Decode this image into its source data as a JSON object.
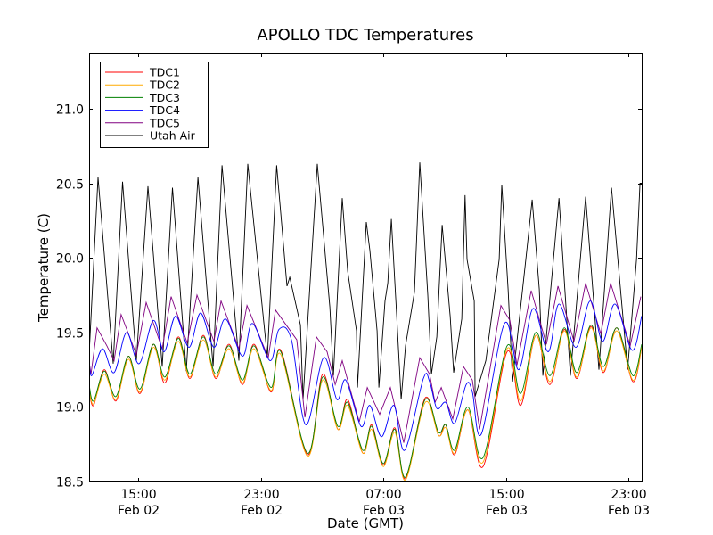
{
  "chart_data": {
    "type": "line",
    "title": "APOLLO TDC Temperatures",
    "xlabel": "Date (GMT)",
    "ylabel": "Temperature (C)",
    "x_units": "hours since 00:00 Feb 02 (GMT)",
    "xlim": [
      11.8,
      47.86
    ],
    "ylim": [
      18.5,
      21.37
    ],
    "grid": false,
    "legend_position": "top-left",
    "xticks": [
      {
        "value": 15,
        "time": "15:00",
        "date": "Feb 02"
      },
      {
        "value": 23,
        "time": "23:00",
        "date": "Feb 02"
      },
      {
        "value": 31,
        "time": "07:00",
        "date": "Feb 03"
      },
      {
        "value": 39,
        "time": "15:00",
        "date": "Feb 03"
      },
      {
        "value": 47,
        "time": "23:00",
        "date": "Feb 03"
      }
    ],
    "yticks": [
      {
        "value": 18.5,
        "label": "18.5"
      },
      {
        "value": 19.0,
        "label": "19.0"
      },
      {
        "value": 19.5,
        "label": "19.5"
      },
      {
        "value": 20.0,
        "label": "20.0"
      },
      {
        "value": 20.5,
        "label": "20.5"
      },
      {
        "value": 21.0,
        "label": "21.0"
      }
    ],
    "series": [
      {
        "name": "TDC1",
        "color": "#ff0000",
        "points": [
          [
            11.8,
            19.12
          ],
          [
            12.09,
            19.01
          ],
          [
            12.79,
            19.25
          ],
          [
            13.55,
            19.04
          ],
          [
            14.36,
            19.34
          ],
          [
            15.12,
            19.09
          ],
          [
            15.99,
            19.42
          ],
          [
            16.74,
            19.16
          ],
          [
            17.62,
            19.47
          ],
          [
            18.37,
            19.19
          ],
          [
            19.25,
            19.48
          ],
          [
            20.06,
            19.19
          ],
          [
            20.93,
            19.42
          ],
          [
            21.81,
            19.15
          ],
          [
            22.56,
            19.42
          ],
          [
            23.67,
            19.1
          ],
          [
            24.31,
            19.38
          ],
          [
            26.05,
            18.68
          ],
          [
            27.04,
            19.22
          ],
          [
            28.03,
            18.85
          ],
          [
            28.67,
            19.05
          ],
          [
            29.66,
            18.69
          ],
          [
            30.24,
            18.88
          ],
          [
            31.0,
            18.61
          ],
          [
            31.75,
            18.86
          ],
          [
            32.45,
            18.52
          ],
          [
            33.73,
            19.06
          ],
          [
            34.6,
            18.81
          ],
          [
            35.07,
            18.88
          ],
          [
            35.65,
            18.68
          ],
          [
            36.52,
            18.98
          ],
          [
            37.51,
            18.6
          ],
          [
            39.08,
            19.37
          ],
          [
            39.96,
            19.01
          ],
          [
            40.95,
            19.48
          ],
          [
            41.87,
            19.15
          ],
          [
            42.81,
            19.52
          ],
          [
            43.62,
            19.19
          ],
          [
            44.55,
            19.54
          ],
          [
            45.36,
            19.23
          ],
          [
            46.24,
            19.53
          ],
          [
            47.28,
            19.17
          ],
          [
            47.86,
            19.4
          ]
        ]
      },
      {
        "name": "TDC2",
        "color": "#ffaa00",
        "points": [
          [
            11.8,
            19.12
          ],
          [
            12.09,
            19.02
          ],
          [
            12.79,
            19.22
          ],
          [
            13.55,
            19.05
          ],
          [
            14.36,
            19.32
          ],
          [
            15.12,
            19.1
          ],
          [
            15.99,
            19.4
          ],
          [
            16.74,
            19.18
          ],
          [
            17.62,
            19.44
          ],
          [
            18.37,
            19.2
          ],
          [
            19.25,
            19.45
          ],
          [
            20.06,
            19.2
          ],
          [
            20.93,
            19.39
          ],
          [
            21.81,
            19.16
          ],
          [
            22.56,
            19.39
          ],
          [
            23.67,
            19.11
          ],
          [
            24.31,
            19.35
          ],
          [
            26.05,
            18.67
          ],
          [
            27.04,
            19.18
          ],
          [
            28.03,
            18.85
          ],
          [
            28.67,
            19.01
          ],
          [
            29.66,
            18.69
          ],
          [
            30.24,
            18.85
          ],
          [
            31.0,
            18.6
          ],
          [
            31.75,
            18.83
          ],
          [
            32.45,
            18.51
          ],
          [
            33.73,
            19.03
          ],
          [
            34.6,
            18.81
          ],
          [
            35.07,
            18.86
          ],
          [
            35.65,
            18.69
          ],
          [
            36.52,
            18.98
          ],
          [
            37.51,
            18.63
          ],
          [
            39.08,
            19.39
          ],
          [
            39.96,
            19.04
          ],
          [
            40.95,
            19.48
          ],
          [
            41.87,
            19.17
          ],
          [
            42.81,
            19.51
          ],
          [
            43.62,
            19.2
          ],
          [
            44.55,
            19.53
          ],
          [
            45.36,
            19.24
          ],
          [
            46.24,
            19.51
          ],
          [
            47.28,
            19.18
          ],
          [
            47.86,
            19.4
          ]
        ]
      },
      {
        "name": "TDC3",
        "color": "#008000",
        "points": [
          [
            11.8,
            19.15
          ],
          [
            12.09,
            19.04
          ],
          [
            12.79,
            19.24
          ],
          [
            13.55,
            19.07
          ],
          [
            14.36,
            19.34
          ],
          [
            15.12,
            19.12
          ],
          [
            15.99,
            19.42
          ],
          [
            16.74,
            19.2
          ],
          [
            17.62,
            19.46
          ],
          [
            18.37,
            19.22
          ],
          [
            19.25,
            19.47
          ],
          [
            20.06,
            19.22
          ],
          [
            20.93,
            19.41
          ],
          [
            21.81,
            19.18
          ],
          [
            22.56,
            19.41
          ],
          [
            23.67,
            19.13
          ],
          [
            24.31,
            19.37
          ],
          [
            26.05,
            18.69
          ],
          [
            27.04,
            19.2
          ],
          [
            28.03,
            18.87
          ],
          [
            28.67,
            19.03
          ],
          [
            29.66,
            18.71
          ],
          [
            30.24,
            18.87
          ],
          [
            31.0,
            18.62
          ],
          [
            31.75,
            18.85
          ],
          [
            32.45,
            18.53
          ],
          [
            33.73,
            19.05
          ],
          [
            34.6,
            18.83
          ],
          [
            35.07,
            18.88
          ],
          [
            35.65,
            18.71
          ],
          [
            36.52,
            19.0
          ],
          [
            37.51,
            18.66
          ],
          [
            39.08,
            19.41
          ],
          [
            39.96,
            19.09
          ],
          [
            40.95,
            19.5
          ],
          [
            41.87,
            19.21
          ],
          [
            42.81,
            19.53
          ],
          [
            43.62,
            19.23
          ],
          [
            44.55,
            19.55
          ],
          [
            45.36,
            19.27
          ],
          [
            46.24,
            19.53
          ],
          [
            47.28,
            19.21
          ],
          [
            47.86,
            19.42
          ]
        ]
      },
      {
        "name": "TDC4",
        "color": "#0000ff",
        "points": [
          [
            11.8,
            19.33
          ],
          [
            11.97,
            19.21
          ],
          [
            12.67,
            19.39
          ],
          [
            13.43,
            19.23
          ],
          [
            14.24,
            19.5
          ],
          [
            15.06,
            19.29
          ],
          [
            15.99,
            19.58
          ],
          [
            16.69,
            19.37
          ],
          [
            17.44,
            19.61
          ],
          [
            18.32,
            19.4
          ],
          [
            19.07,
            19.63
          ],
          [
            19.94,
            19.4
          ],
          [
            20.7,
            19.59
          ],
          [
            21.81,
            19.34
          ],
          [
            22.45,
            19.56
          ],
          [
            23.61,
            19.31
          ],
          [
            24.19,
            19.52
          ],
          [
            25.0,
            19.45
          ],
          [
            25.94,
            18.88
          ],
          [
            27.1,
            19.33
          ],
          [
            27.97,
            19.05
          ],
          [
            28.55,
            19.18
          ],
          [
            29.54,
            18.87
          ],
          [
            30.12,
            19.01
          ],
          [
            30.88,
            18.8
          ],
          [
            31.69,
            19.01
          ],
          [
            32.39,
            18.71
          ],
          [
            33.61,
            19.19
          ],
          [
            34.02,
            19.17
          ],
          [
            34.49,
            18.99
          ],
          [
            35.07,
            19.03
          ],
          [
            35.65,
            18.89
          ],
          [
            36.41,
            19.15
          ],
          [
            36.81,
            19.1
          ],
          [
            37.4,
            18.82
          ],
          [
            38.91,
            19.56
          ],
          [
            39.84,
            19.25
          ],
          [
            40.77,
            19.66
          ],
          [
            41.76,
            19.37
          ],
          [
            42.46,
            19.69
          ],
          [
            43.56,
            19.4
          ],
          [
            44.49,
            19.71
          ],
          [
            45.31,
            19.44
          ],
          [
            46.12,
            19.69
          ],
          [
            47.23,
            19.38
          ],
          [
            47.86,
            19.61
          ]
        ]
      },
      {
        "name": "TDC5",
        "color": "#800080",
        "points": [
          [
            11.8,
            19.3
          ],
          [
            11.92,
            19.22
          ],
          [
            12.32,
            19.53
          ],
          [
            12.96,
            19.41
          ],
          [
            13.43,
            19.31
          ],
          [
            13.89,
            19.62
          ],
          [
            14.88,
            19.35
          ],
          [
            15.52,
            19.7
          ],
          [
            16.57,
            19.39
          ],
          [
            17.15,
            19.74
          ],
          [
            18.2,
            19.43
          ],
          [
            18.84,
            19.75
          ],
          [
            19.94,
            19.44
          ],
          [
            20.41,
            19.71
          ],
          [
            21.57,
            19.39
          ],
          [
            22.1,
            19.68
          ],
          [
            23.49,
            19.33
          ],
          [
            23.96,
            19.65
          ],
          [
            25.35,
            19.45
          ],
          [
            25.88,
            18.93
          ],
          [
            26.63,
            19.47
          ],
          [
            27.33,
            19.37
          ],
          [
            27.86,
            19.15
          ],
          [
            28.32,
            19.31
          ],
          [
            29.43,
            18.9
          ],
          [
            29.95,
            19.13
          ],
          [
            30.76,
            18.95
          ],
          [
            31.46,
            19.13
          ],
          [
            32.33,
            18.76
          ],
          [
            33.38,
            19.33
          ],
          [
            34.02,
            19.22
          ],
          [
            34.37,
            19.03
          ],
          [
            34.78,
            19.13
          ],
          [
            35.53,
            18.92
          ],
          [
            36.23,
            19.27
          ],
          [
            36.81,
            19.18
          ],
          [
            37.28,
            18.85
          ],
          [
            38.67,
            19.68
          ],
          [
            39.26,
            19.58
          ],
          [
            39.72,
            19.28
          ],
          [
            40.65,
            19.78
          ],
          [
            41.64,
            19.42
          ],
          [
            42.4,
            19.81
          ],
          [
            43.44,
            19.44
          ],
          [
            44.2,
            19.83
          ],
          [
            45.19,
            19.49
          ],
          [
            45.83,
            19.83
          ],
          [
            47.11,
            19.41
          ],
          [
            47.8,
            19.74
          ]
        ]
      },
      {
        "name": "Utah Air",
        "color": "#000000",
        "points": [
          [
            11.8,
            19.35
          ],
          [
            12.38,
            20.54
          ],
          [
            13.37,
            19.29
          ],
          [
            13.98,
            20.51
          ],
          [
            14.88,
            19.31
          ],
          [
            15.64,
            20.48
          ],
          [
            16.57,
            19.27
          ],
          [
            17.24,
            20.47
          ],
          [
            18.14,
            19.24
          ],
          [
            18.9,
            20.54
          ],
          [
            19.89,
            19.27
          ],
          [
            20.47,
            20.62
          ],
          [
            21.57,
            19.31
          ],
          [
            22.15,
            20.63
          ],
          [
            23.43,
            19.33
          ],
          [
            24.04,
            20.62
          ],
          [
            24.71,
            19.81
          ],
          [
            24.89,
            19.87
          ],
          [
            25.59,
            19.55
          ],
          [
            25.76,
            19.05
          ],
          [
            26.69,
            20.63
          ],
          [
            27.51,
            19.67
          ],
          [
            27.74,
            19.21
          ],
          [
            28.32,
            20.4
          ],
          [
            28.67,
            19.91
          ],
          [
            29.25,
            19.51
          ],
          [
            29.31,
            19.13
          ],
          [
            29.89,
            20.24
          ],
          [
            30.12,
            20.05
          ],
          [
            30.59,
            19.51
          ],
          [
            30.71,
            19.13
          ],
          [
            31.11,
            19.71
          ],
          [
            31.29,
            19.83
          ],
          [
            31.52,
            20.26
          ],
          [
            31.87,
            19.61
          ],
          [
            32.16,
            19.05
          ],
          [
            32.45,
            19.41
          ],
          [
            33.03,
            19.77
          ],
          [
            33.38,
            20.64
          ],
          [
            33.9,
            19.75
          ],
          [
            34.14,
            19.22
          ],
          [
            34.49,
            19.47
          ],
          [
            34.84,
            20.22
          ],
          [
            35.36,
            19.61
          ],
          [
            35.59,
            19.23
          ],
          [
            36.12,
            19.59
          ],
          [
            36.33,
            20.42
          ],
          [
            36.46,
            19.99
          ],
          [
            36.93,
            19.71
          ],
          [
            36.99,
            19.07
          ],
          [
            37.69,
            19.31
          ],
          [
            38.56,
            19.99
          ],
          [
            38.73,
            20.49
          ],
          [
            39.14,
            19.79
          ],
          [
            39.43,
            19.17
          ],
          [
            40.3,
            19.99
          ],
          [
            40.71,
            20.39
          ],
          [
            41.18,
            19.79
          ],
          [
            41.41,
            19.21
          ],
          [
            42.46,
            20.4
          ],
          [
            43.21,
            19.21
          ],
          [
            44.2,
            20.41
          ],
          [
            45.07,
            19.25
          ],
          [
            45.89,
            20.47
          ],
          [
            46.94,
            19.25
          ],
          [
            47.52,
            19.99
          ],
          [
            47.75,
            20.5
          ],
          [
            47.86,
            20.5
          ]
        ]
      }
    ]
  }
}
